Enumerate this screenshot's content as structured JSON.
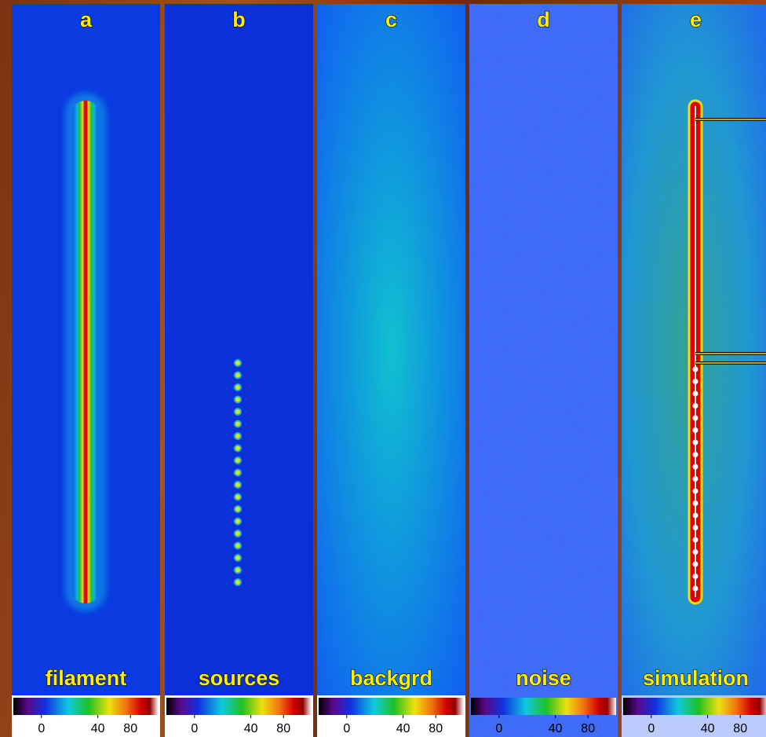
{
  "panels": [
    {
      "letter": "a",
      "label": "filament",
      "colorbar_ticks": [
        0,
        40,
        80
      ]
    },
    {
      "letter": "b",
      "label": "sources",
      "colorbar_ticks": [
        0,
        40,
        80
      ]
    },
    {
      "letter": "c",
      "label": "backgrd",
      "colorbar_ticks": [
        0,
        40,
        80
      ]
    },
    {
      "letter": "d",
      "label": "noise",
      "colorbar_ticks": [
        0,
        40,
        80
      ]
    },
    {
      "letter": "e",
      "label": "simulation",
      "colorbar_ticks": [
        0,
        40,
        80
      ]
    }
  ]
}
